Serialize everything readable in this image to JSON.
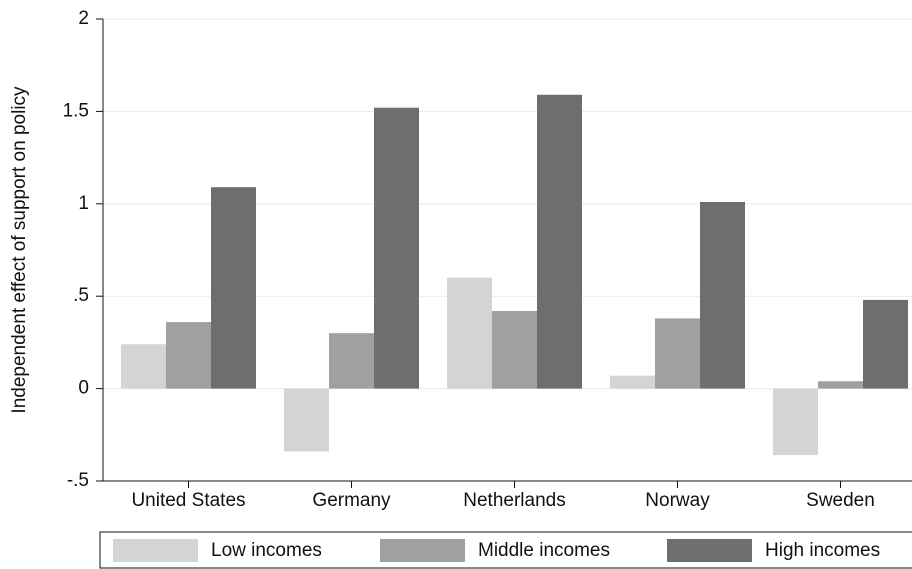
{
  "chart_data": {
    "type": "bar",
    "y_label": "Independent effect of support on policy",
    "categories": [
      "United States",
      "Germany",
      "Netherlands",
      "Norway",
      "Sweden"
    ],
    "series": [
      {
        "name": "Low incomes",
        "color": "#d4d4d4",
        "values": [
          0.24,
          -0.34,
          0.6,
          0.07,
          -0.36
        ]
      },
      {
        "name": "Middle incomes",
        "color": "#a0a0a0",
        "values": [
          0.36,
          0.3,
          0.42,
          0.38,
          0.04
        ]
      },
      {
        "name": "High incomes",
        "color": "#6e6e6e",
        "values": [
          1.09,
          1.52,
          1.59,
          1.01,
          0.48
        ]
      }
    ],
    "ylim": [
      -0.5,
      2
    ],
    "yticks": [
      {
        "value": -0.5,
        "label": "-.5"
      },
      0,
      {
        "value": 0.5,
        "label": ".5"
      },
      1,
      1.5,
      2
    ],
    "grid": true
  }
}
